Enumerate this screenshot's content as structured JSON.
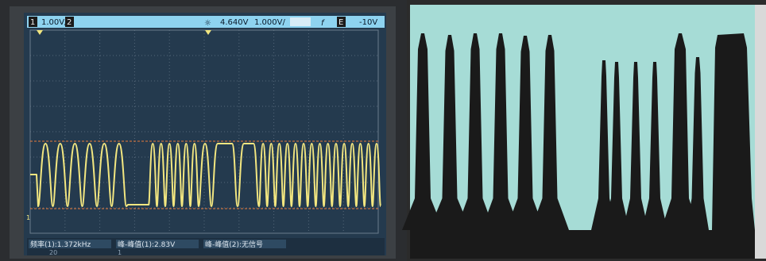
{
  "scope": {
    "ch1_marker": "1",
    "ch1_scale": "1.00V/",
    "ch2_marker": "2",
    "sun_icon": "☼",
    "trigger_level": "4.640V",
    "timebase": "1.000V/",
    "f_icon": "f",
    "e_marker": "E",
    "offset": "-10V",
    "measurements": [
      "频率(1):1.372kHz",
      "峰-峰值(1):2.83V",
      "峰-峰值(2):无信号"
    ],
    "bottom_row": [
      "20",
      "1"
    ],
    "trace_color": "#f2e680",
    "cursor_color": "#e87a3a",
    "screen_color": "#243a4e"
  },
  "overlay": {
    "colors": {
      "background": "#a6dcd6",
      "ink": "#1a1a1a",
      "paper": "#d9d9d9"
    }
  }
}
